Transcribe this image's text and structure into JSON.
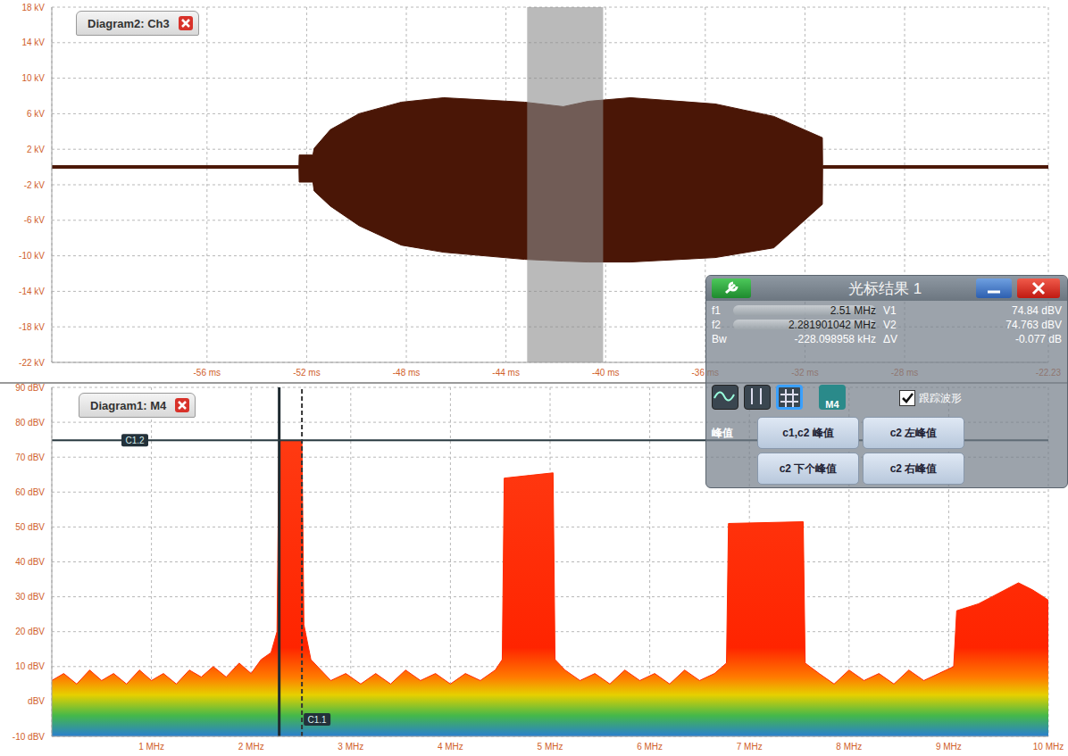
{
  "chart_data": [
    {
      "type": "range_area",
      "title": "Diagram2: Ch3",
      "x": [
        -62.23,
        -52.31,
        -52.3,
        -51.75,
        -51.7,
        -51.05,
        -49.9,
        -48.2,
        -46.5,
        -43.25,
        -41.7,
        -40.7,
        -39.0,
        -35.6,
        -33.25,
        -31.3,
        -31.29,
        -22.23
      ],
      "lows": [
        -0.15,
        -0.15,
        -1.7,
        -1.7,
        -2.7,
        -4.4,
        -6.6,
        -8.8,
        -9.6,
        -10.4,
        -10.6,
        -10.7,
        -10.7,
        -10.2,
        -9.1,
        -4.2,
        -0.15,
        -0.15
      ],
      "highs": [
        0.15,
        0.15,
        1.35,
        1.35,
        2.1,
        4.2,
        6.0,
        7.3,
        7.8,
        7.3,
        6.8,
        7.4,
        7.8,
        7.1,
        5.7,
        3.3,
        0.15,
        0.15
      ],
      "color": "#4a1606",
      "xlim": [
        -62.23,
        -22.23
      ],
      "xticks": [
        {
          "value": -56,
          "label": "-56 ms"
        },
        {
          "value": -52,
          "label": "-52 ms"
        },
        {
          "value": -48,
          "label": "-48 ms"
        },
        {
          "value": -44,
          "label": "-44 ms"
        },
        {
          "value": -40,
          "label": "-40 ms"
        },
        {
          "value": -36,
          "label": "-36 ms"
        },
        {
          "value": -32,
          "label": "-32 ms"
        },
        {
          "value": -28,
          "label": "-28 ms"
        },
        {
          "value": -22.23,
          "label": "-22.23"
        }
      ],
      "ylim": [
        -22,
        18
      ],
      "yticks": [
        {
          "value": 18,
          "label": "18 kV"
        },
        {
          "value": 14,
          "label": "14 kV"
        },
        {
          "value": 10,
          "label": "10 kV"
        },
        {
          "value": 6,
          "label": "6 kV"
        },
        {
          "value": 2,
          "label": "2 kV"
        },
        {
          "value": -2,
          "label": "-2 kV"
        },
        {
          "value": -6,
          "label": "-6 kV"
        },
        {
          "value": -10,
          "label": "-10 kV"
        },
        {
          "value": -14,
          "label": "-14 kV"
        },
        {
          "value": -18,
          "label": "-18 kV"
        },
        {
          "value": -22,
          "label": "-22 kV"
        }
      ],
      "grid": true,
      "gate": [
        -43.15,
        -40.1
      ]
    },
    {
      "type": "area",
      "title": "Diagram1: M4",
      "x": [
        0,
        0.12,
        0.25,
        0.38,
        0.5,
        0.62,
        0.75,
        0.88,
        1.0,
        1.12,
        1.25,
        1.38,
        1.5,
        1.62,
        1.75,
        1.88,
        2.0,
        2.1,
        2.2,
        2.26,
        2.28,
        2.51,
        2.53,
        2.6,
        2.7,
        2.8,
        2.95,
        3.1,
        3.25,
        3.4,
        3.55,
        3.7,
        3.85,
        4.0,
        4.15,
        4.3,
        4.45,
        4.52,
        4.54,
        4.8,
        5.03,
        5.05,
        5.15,
        5.3,
        5.45,
        5.6,
        5.75,
        5.9,
        6.05,
        6.2,
        6.35,
        6.5,
        6.65,
        6.77,
        6.79,
        7.54,
        7.56,
        7.7,
        7.85,
        8.0,
        8.15,
        8.3,
        8.45,
        8.6,
        8.75,
        8.9,
        9.05,
        9.08,
        9.3,
        9.5,
        9.7,
        9.84,
        9.95,
        10
      ],
      "values": [
        6,
        8,
        5,
        9,
        6,
        8,
        5,
        9,
        6,
        8,
        5,
        9,
        7,
        10,
        7,
        11,
        8,
        12,
        14,
        20,
        74.8,
        74.8,
        22,
        12,
        9,
        6,
        8,
        5,
        8,
        5,
        9,
        6,
        8,
        5,
        8,
        6,
        9,
        12,
        64,
        64.8,
        65.5,
        12,
        9,
        6,
        8,
        5,
        9,
        6,
        8,
        5,
        9,
        6,
        8,
        11,
        51,
        51.5,
        11,
        8,
        5,
        9,
        6,
        8,
        5,
        9,
        6,
        8,
        10,
        26,
        28,
        31,
        34,
        32,
        30,
        29
      ],
      "color": "#ff2a00",
      "xlim": [
        0,
        10
      ],
      "xticks": [
        {
          "value": 1,
          "label": "1 MHz"
        },
        {
          "value": 2,
          "label": "2 MHz"
        },
        {
          "value": 3,
          "label": "3 MHz"
        },
        {
          "value": 4,
          "label": "4 MHz"
        },
        {
          "value": 5,
          "label": "5 MHz"
        },
        {
          "value": 6,
          "label": "6 MHz"
        },
        {
          "value": 7,
          "label": "7 MHz"
        },
        {
          "value": 8,
          "label": "8 MHz"
        },
        {
          "value": 9,
          "label": "9 MHz"
        },
        {
          "value": 10,
          "label": "10 MHz"
        }
      ],
      "ylim": [
        -10,
        90
      ],
      "yticks": [
        {
          "value": -10,
          "label": "-10 dBV"
        },
        {
          "value": 0,
          "label": "dBV"
        },
        {
          "value": 10,
          "label": "10 dBV"
        },
        {
          "value": 20,
          "label": "20 dBV"
        },
        {
          "value": 30,
          "label": "30 dBV"
        },
        {
          "value": 40,
          "label": "40 dBV"
        },
        {
          "value": 50,
          "label": "50 dBV"
        },
        {
          "value": 60,
          "label": "60 dBV"
        },
        {
          "value": 70,
          "label": "70 dBV"
        },
        {
          "value": 80,
          "label": "80 dBV"
        },
        {
          "value": 90,
          "label": "90 dBV"
        }
      ],
      "grid": true,
      "cursors": {
        "f1": 2.51,
        "f2": 2.281901042,
        "v1": 74.84,
        "v2": 74.763
      },
      "cursor_labels": {
        "horizontal": "C1.2",
        "vertical": "C1.1"
      }
    }
  ],
  "cursor_panel": {
    "title": "光标结果 1",
    "rows": [
      [
        "f1",
        "2.51 MHz",
        "V1",
        "74.84 dBV"
      ],
      [
        "f2",
        "2.281901042 MHz",
        "V2",
        "74.763 dBV"
      ],
      [
        "Bw",
        "-228.098958 kHz",
        "ΔV",
        "-0.077 dB"
      ]
    ],
    "source_button": "M4",
    "checkbox": "跟踪波形",
    "peak_label": "峰值",
    "buttons": [
      "c1,c2 峰值",
      "c2 左峰值",
      "c2 下个峰值",
      "c2 右峰值"
    ]
  }
}
